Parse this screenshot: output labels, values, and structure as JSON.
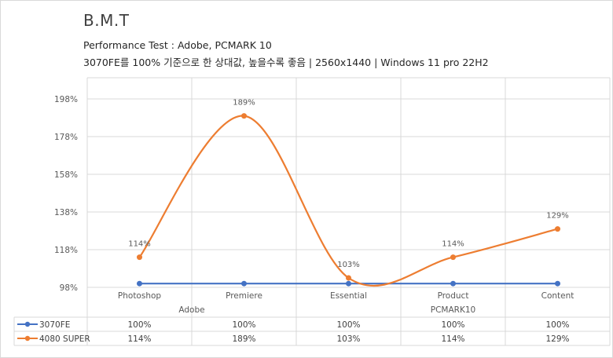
{
  "header": {
    "title": "B.M.T",
    "subtitle": "Performance Test : Adobe, PCMARK 10",
    "subtitle2": "3070FE를 100% 기준으로 한 상대값, 높을수록 좋음 | 2560x1440 | Windows 11 pro 22H2"
  },
  "chart_data": {
    "type": "line",
    "categories": [
      "Photoshop",
      "Premiere",
      "Essential",
      "Product",
      "Content"
    ],
    "groups": [
      {
        "label": "Adobe",
        "categories": [
          "Photoshop",
          "Premiere"
        ]
      },
      {
        "label": "PCMARK10",
        "categories": [
          "Essential",
          "Product",
          "Content"
        ]
      }
    ],
    "y_ticks": [
      "98%",
      "118%",
      "138%",
      "158%",
      "178%",
      "198%"
    ],
    "ylim": [
      98,
      208
    ],
    "grid": true,
    "smooth": true,
    "legend": "data-table",
    "series": [
      {
        "name": "3070FE",
        "color": "#4472c4",
        "values": [
          100,
          100,
          100,
          100,
          100
        ],
        "labels": [
          "100%",
          "100%",
          "100%",
          "100%",
          "100%"
        ],
        "show_point_labels": false
      },
      {
        "name": "4080 SUPER",
        "color": "#ed7d31",
        "values": [
          114,
          189,
          103,
          114,
          129
        ],
        "labels": [
          "114%",
          "189%",
          "103%",
          "114%",
          "129%"
        ],
        "show_point_labels": true
      }
    ]
  }
}
